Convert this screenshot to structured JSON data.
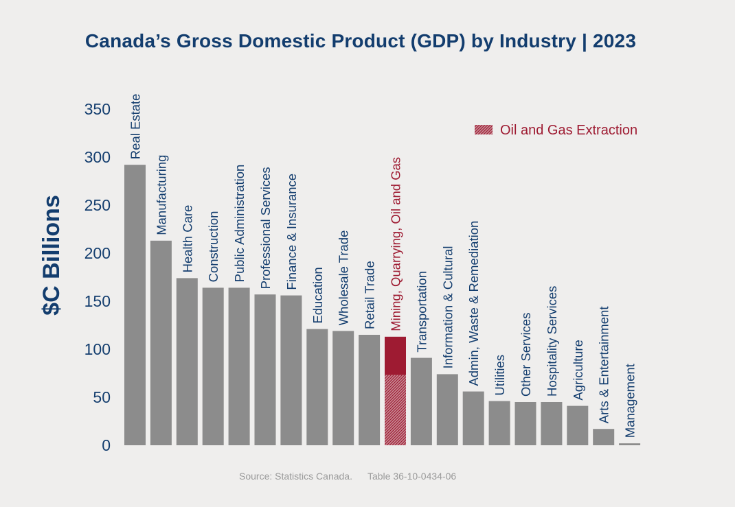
{
  "chart_data": {
    "type": "bar",
    "title": "Canada’s Gross Domestic Product (GDP) by Industry | 2023",
    "ylabel": "$C Billions",
    "xlabel": "",
    "ylim": [
      0,
      350
    ],
    "yticks": [
      0,
      50,
      100,
      150,
      200,
      250,
      300,
      350
    ],
    "grid": false,
    "categories": [
      "Real Estate",
      "Manufacturing",
      "Health Care",
      "Construction",
      "Public Administration",
      "Professional Services",
      "Finance & Insurance",
      "Education",
      "Wholesale Trade",
      "Retail Trade",
      "Mining, Quarrying, Oil and Gas",
      "Transportation",
      "Information & Cultural",
      "Admin, Waste & Remediation",
      "Utilities",
      "Other Services",
      "Hospitality Services",
      "Agriculture",
      "Arts & Entertainment",
      "Management"
    ],
    "values": [
      292,
      213,
      174,
      164,
      164,
      157,
      156,
      121,
      119,
      115,
      113,
      91,
      74,
      56,
      46,
      45,
      45,
      41,
      17,
      2
    ],
    "highlight_category": "Mining, Quarrying, Oil and Gas",
    "sub_segment": {
      "category": "Mining, Quarrying, Oil and Gas",
      "name": "Oil and Gas Extraction",
      "value": 73
    },
    "legend": {
      "position": "top-right",
      "entries": [
        "Oil and Gas Extraction"
      ]
    },
    "colors": {
      "bar": "#8c8c8c",
      "highlight": "#9e1b32",
      "text": "#133d6e",
      "background": "#efeeed"
    }
  },
  "source": {
    "label": "Source: Statistics Canada.",
    "table": "Table 36-10-0434-06"
  }
}
